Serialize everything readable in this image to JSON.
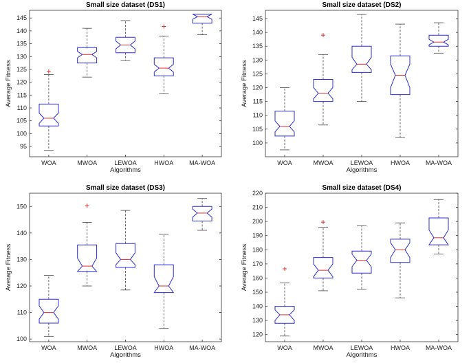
{
  "chart_data": [
    {
      "type": "box",
      "title": "Small size dataset (DS1)",
      "xlabel": "Algorithms",
      "ylabel": "Average Fitness",
      "categories": [
        "WOA",
        "MWOA",
        "LEWOA",
        "HWOA",
        "MA-WOA"
      ],
      "ylim": [
        91,
        148
      ],
      "yticks": [
        95,
        100,
        105,
        110,
        115,
        120,
        125,
        130,
        135,
        140,
        145
      ],
      "boxes": [
        {
          "min": 93.5,
          "q1": 103.0,
          "median": 106.0,
          "q3": 111.5,
          "max": 123.0,
          "notch_lo": 104.0,
          "notch_hi": 108.0,
          "outliers": [
            124.2
          ]
        },
        {
          "min": 122.0,
          "q1": 127.5,
          "median": 130.8,
          "q3": 133.5,
          "max": 141.0,
          "notch_lo": 129.5,
          "notch_hi": 132.0,
          "outliers": []
        },
        {
          "min": 128.5,
          "q1": 131.5,
          "median": 134.5,
          "q3": 137.5,
          "max": 144.0,
          "notch_lo": 133.0,
          "notch_hi": 136.0,
          "outliers": []
        },
        {
          "min": 115.5,
          "q1": 122.5,
          "median": 125.5,
          "q3": 129.5,
          "max": 138.0,
          "notch_lo": 124.0,
          "notch_hi": 127.0,
          "outliers": [
            141.7
          ]
        },
        {
          "min": 138.5,
          "q1": 143.0,
          "median": 145.5,
          "q3": 146.5,
          "max": 146.5,
          "notch_lo": 144.5,
          "notch_hi": 146.5,
          "outliers": []
        }
      ]
    },
    {
      "type": "box",
      "title": "Small size dataset (DS2)",
      "xlabel": "Algorithms",
      "ylabel": "Average Fitness",
      "categories": [
        "WOA",
        "MWOA",
        "LEWOA",
        "HWOA",
        "MA-WOA"
      ],
      "ylim": [
        95,
        148
      ],
      "yticks": [
        100,
        105,
        110,
        115,
        120,
        125,
        130,
        135,
        140,
        145
      ],
      "boxes": [
        {
          "min": 97.5,
          "q1": 102.5,
          "median": 106.0,
          "q3": 111.5,
          "max": 120.0,
          "notch_lo": 104.0,
          "notch_hi": 108.0,
          "outliers": []
        },
        {
          "min": 106.5,
          "q1": 115.0,
          "median": 118.0,
          "q3": 123.0,
          "max": 132.0,
          "notch_lo": 116.0,
          "notch_hi": 120.0,
          "outliers": [
            139.0
          ]
        },
        {
          "min": 115.0,
          "q1": 125.5,
          "median": 128.5,
          "q3": 135.0,
          "max": 146.5,
          "notch_lo": 126.5,
          "notch_hi": 131.0,
          "outliers": []
        },
        {
          "min": 102.0,
          "q1": 117.5,
          "median": 124.5,
          "q3": 131.5,
          "max": 143.0,
          "notch_lo": 120.0,
          "notch_hi": 128.5,
          "outliers": []
        },
        {
          "min": 132.5,
          "q1": 135.0,
          "median": 136.5,
          "q3": 139.0,
          "max": 143.5,
          "notch_lo": 135.5,
          "notch_hi": 137.5,
          "outliers": []
        }
      ]
    },
    {
      "type": "box",
      "title": "Small size dataset (DS3)",
      "xlabel": "Algorithms",
      "ylabel": "Average Fitness",
      "categories": [
        "WOA",
        "MWOA",
        "LEWOA",
        "HWOA",
        "MA-WOA"
      ],
      "ylim": [
        99,
        155
      ],
      "yticks": [
        100,
        110,
        120,
        130,
        140,
        150
      ],
      "boxes": [
        {
          "min": 101.0,
          "q1": 106.0,
          "median": 110.0,
          "q3": 115.0,
          "max": 124.0,
          "notch_lo": 107.5,
          "notch_hi": 112.5,
          "outliers": []
        },
        {
          "min": 120.0,
          "q1": 125.5,
          "median": 127.5,
          "q3": 135.5,
          "max": 144.0,
          "notch_lo": 125.5,
          "notch_hi": 130.5,
          "outliers": [
            150.3
          ]
        },
        {
          "min": 118.5,
          "q1": 127.0,
          "median": 130.0,
          "q3": 136.0,
          "max": 148.5,
          "notch_lo": 128.0,
          "notch_hi": 132.5,
          "outliers": []
        },
        {
          "min": 104.0,
          "q1": 117.5,
          "median": 120.0,
          "q3": 128.0,
          "max": 139.5,
          "notch_lo": 117.5,
          "notch_hi": 123.5,
          "outliers": []
        },
        {
          "min": 141.0,
          "q1": 144.5,
          "median": 147.5,
          "q3": 150.0,
          "max": 153.0,
          "notch_lo": 146.0,
          "notch_hi": 149.0,
          "outliers": []
        }
      ]
    },
    {
      "type": "box",
      "title": "Small size dataset (DS4)",
      "xlabel": "Algorithms",
      "ylabel": "Average Fitness",
      "categories": [
        "WOA",
        "MWOA",
        "LEWOA",
        "HWOA",
        "MA-WOA"
      ],
      "ylim": [
        115,
        220
      ],
      "yticks": [
        120,
        130,
        140,
        150,
        160,
        170,
        180,
        190,
        200,
        210,
        220
      ],
      "boxes": [
        {
          "min": 119.0,
          "q1": 128.0,
          "median": 134.0,
          "q3": 140.0,
          "max": 156.5,
          "notch_lo": 130.0,
          "notch_hi": 137.5,
          "outliers": [
            166.5
          ]
        },
        {
          "min": 151.0,
          "q1": 160.0,
          "median": 165.5,
          "q3": 174.5,
          "max": 196.0,
          "notch_lo": 161.0,
          "notch_hi": 170.0,
          "outliers": [
            199.5
          ]
        },
        {
          "min": 152.0,
          "q1": 163.5,
          "median": 172.5,
          "q3": 179.0,
          "max": 197.0,
          "notch_lo": 168.0,
          "notch_hi": 177.0,
          "outliers": []
        },
        {
          "min": 146.0,
          "q1": 171.0,
          "median": 180.0,
          "q3": 187.5,
          "max": 199.0,
          "notch_lo": 174.5,
          "notch_hi": 185.0,
          "outliers": []
        },
        {
          "min": 177.0,
          "q1": 183.5,
          "median": 188.5,
          "q3": 202.5,
          "max": 215.5,
          "notch_lo": 183.5,
          "notch_hi": 194.0,
          "outliers": []
        }
      ]
    }
  ],
  "colors": {
    "box": "#2b2bd6",
    "median": "#e03030",
    "whisker": "#444444",
    "outlier": "#e03030",
    "axis": "#333333"
  }
}
